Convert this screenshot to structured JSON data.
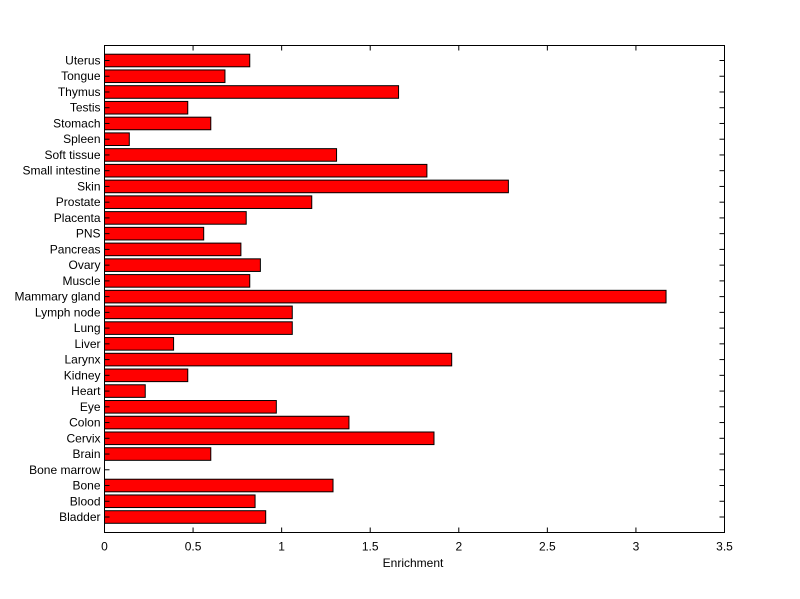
{
  "chart_data": {
    "type": "bar",
    "orientation": "horizontal",
    "title": "",
    "xlabel": "Enrichment",
    "ylabel": "",
    "xlim": [
      0,
      3.5
    ],
    "xticks": [
      "0",
      "0.5",
      "1",
      "1.5",
      "2",
      "2.5",
      "3",
      "3.5"
    ],
    "categories": [
      "Bladder",
      "Blood",
      "Bone",
      "Bone marrow",
      "Brain",
      "Cervix",
      "Colon",
      "Eye",
      "Heart",
      "Kidney",
      "Larynx",
      "Liver",
      "Lung",
      "Lymph node",
      "Mammary gland",
      "Muscle",
      "Ovary",
      "Pancreas",
      "PNS",
      "Placenta",
      "Prostate",
      "Skin",
      "Small intestine",
      "Soft tissue",
      "Spleen",
      "Stomach",
      "Testis",
      "Thymus",
      "Tongue",
      "Uterus"
    ],
    "values": [
      0.91,
      0.85,
      1.29,
      0.0,
      0.6,
      1.86,
      1.38,
      0.97,
      0.23,
      0.47,
      1.96,
      0.39,
      1.06,
      1.06,
      3.17,
      0.82,
      0.88,
      0.77,
      0.56,
      0.8,
      1.17,
      2.28,
      1.82,
      1.31,
      0.14,
      0.6,
      0.47,
      1.66,
      0.68,
      0.82
    ],
    "bar_color": "#ff0000",
    "grid": false,
    "legend": "none"
  }
}
